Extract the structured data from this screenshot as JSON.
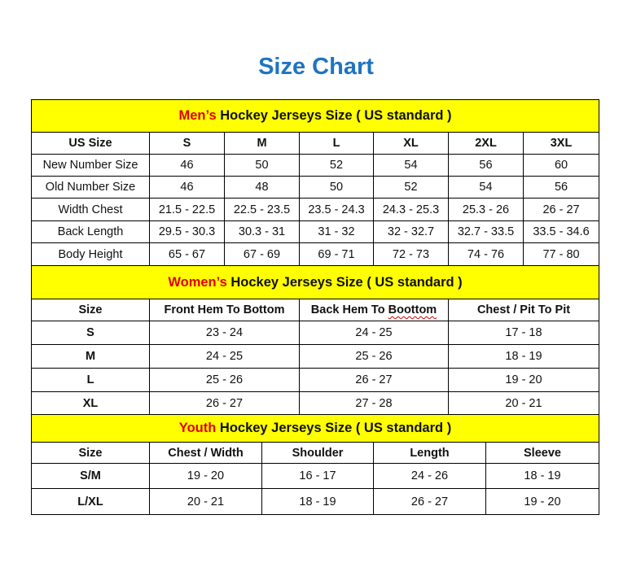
{
  "title": "Size Chart",
  "colors": {
    "title": "#1f74c2",
    "banner_bg": "#ffff00",
    "highlight": "#e00000"
  },
  "sections": [
    {
      "highlight": "Men’s",
      "banner": " Hockey Jerseys Size ( US standard )",
      "header": [
        "US Size",
        "S",
        "M",
        "L",
        "XL",
        "2XL",
        "3XL"
      ],
      "rows": [
        [
          "New Number Size",
          "46",
          "50",
          "52",
          "54",
          "56",
          "60"
        ],
        [
          "Old Number Size",
          "46",
          "48",
          "50",
          "52",
          "54",
          "56"
        ],
        [
          "Width Chest",
          "21.5 - 22.5",
          "22.5 - 23.5",
          "23.5 - 24.3",
          "24.3 - 25.3",
          "25.3 - 26",
          "26 - 27"
        ],
        [
          "Back Length",
          "29.5 - 30.3",
          "30.3 - 31",
          "31 - 32",
          "32 - 32.7",
          "32.7 - 33.5",
          "33.5 - 34.6"
        ],
        [
          "Body Height",
          "65 - 67",
          "67 - 69",
          "69 - 71",
          "72 - 73",
          "74 - 76",
          "77 - 80"
        ]
      ]
    },
    {
      "highlight": "Women’s",
      "banner": " Hockey Jerseys Size ( US standard )",
      "header": [
        "Size",
        "Front Hem To Bottom",
        "Back Hem To Boottom",
        "Chest / Pit To Pit"
      ],
      "rows": [
        [
          "S",
          "23 - 24",
          "24 - 25",
          "17 - 18"
        ],
        [
          "M",
          "24 - 25",
          "25 - 26",
          "18 - 19"
        ],
        [
          "L",
          "25 - 26",
          "26 - 27",
          "19 - 20"
        ],
        [
          "XL",
          "26 - 27",
          "27 - 28",
          "20 - 21"
        ]
      ]
    },
    {
      "highlight": "Youth",
      "banner": " Hockey Jerseys Size ( US standard )",
      "header": [
        "Size",
        "Chest / Width",
        "Shoulder",
        "Length",
        "Sleeve"
      ],
      "rows": [
        [
          "S/M",
          "19 - 20",
          "16 - 17",
          "24 - 26",
          "18 - 19"
        ],
        [
          "L/XL",
          "20 - 21",
          "18 - 19",
          "26 - 27",
          "19 - 20"
        ]
      ]
    }
  ]
}
